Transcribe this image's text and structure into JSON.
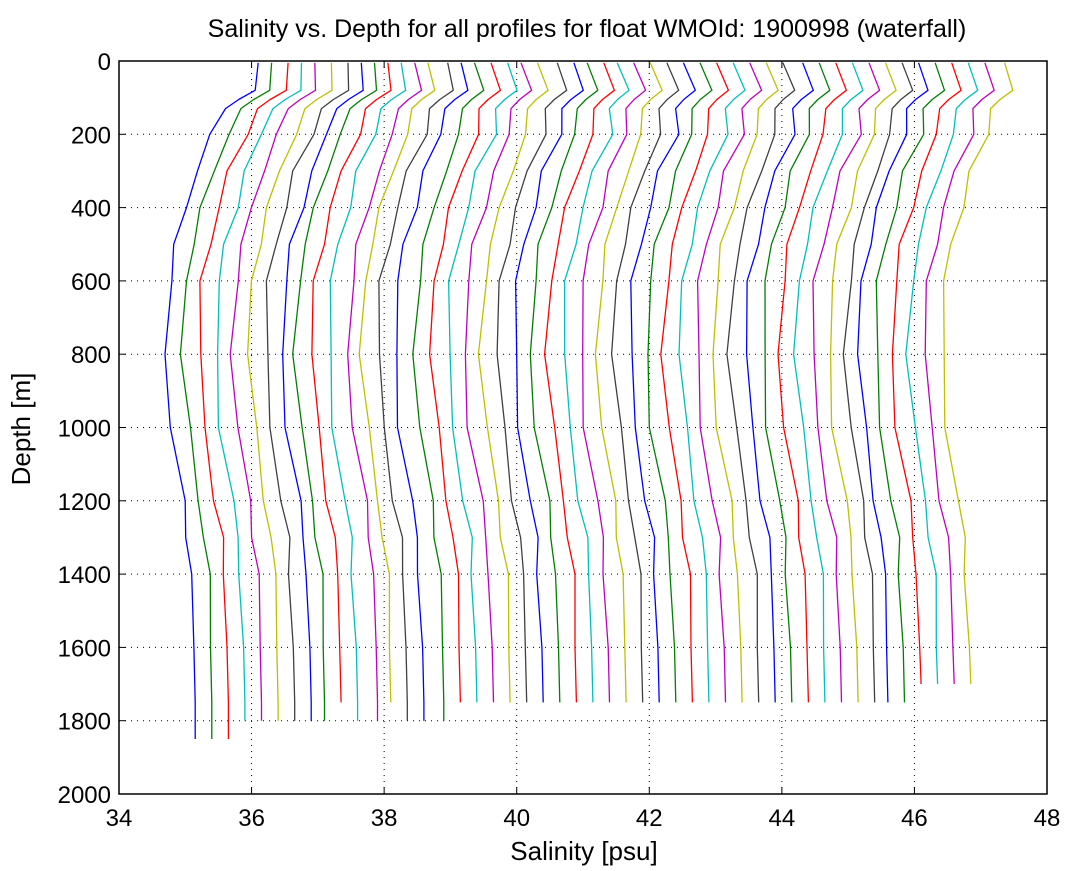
{
  "chart_data": {
    "type": "line",
    "title": "Salinity vs. Depth for all profiles for float WMOId: 1900998 (waterfall)",
    "xlabel": "Salinity [psu]",
    "ylabel": "Depth [m]",
    "xlim": [
      34,
      48
    ],
    "ylim": [
      0,
      2000
    ],
    "y_reversed": true,
    "grid": true,
    "legend": "none",
    "xticks": [
      "34",
      "36",
      "38",
      "40",
      "42",
      "44",
      "46",
      "48"
    ],
    "yticks": [
      "0",
      "200",
      "400",
      "600",
      "800",
      "1000",
      "1200",
      "1400",
      "1600",
      "1800",
      "2000"
    ],
    "depth_levels": [
      5,
      80,
      105,
      130,
      200,
      300,
      400,
      500,
      600,
      800,
      1000,
      1200,
      1300,
      1400,
      1600,
      1750
    ],
    "profile_shape_offsets_psu": [
      1.4,
      1.35,
      1.1,
      0.9,
      0.7,
      0.45,
      0.3,
      0.15,
      0.05,
      0.0,
      0.08,
      0.25,
      0.33,
      0.38,
      0.42,
      0.44
    ],
    "series": [
      {
        "color": "#0000ff",
        "surface_salinity": 36.1,
        "deep_salinity": 35.15,
        "max_depth": 1850
      },
      {
        "color": "#008000",
        "surface_salinity": 36.3,
        "deep_salinity": 35.4,
        "max_depth": 1850
      },
      {
        "color": "#ff0000",
        "surface_salinity": 36.55,
        "deep_salinity": 35.65,
        "max_depth": 1850
      },
      {
        "color": "#00bfbf",
        "surface_salinity": 36.75,
        "deep_salinity": 35.9,
        "max_depth": 1800
      },
      {
        "color": "#bf00bf",
        "surface_salinity": 36.95,
        "deep_salinity": 36.15,
        "max_depth": 1800
      },
      {
        "color": "#bfbf00",
        "surface_salinity": 37.2,
        "deep_salinity": 36.4,
        "max_depth": 1800
      },
      {
        "color": "#404040",
        "surface_salinity": 37.45,
        "deep_salinity": 36.65,
        "max_depth": 1800
      },
      {
        "color": "#0000ff",
        "surface_salinity": 37.65,
        "deep_salinity": 36.9,
        "max_depth": 1800
      },
      {
        "color": "#008000",
        "surface_salinity": 37.85,
        "deep_salinity": 37.1,
        "max_depth": 1800
      },
      {
        "color": "#ff0000",
        "surface_salinity": 38.05,
        "deep_salinity": 37.35,
        "max_depth": 1750
      },
      {
        "color": "#00bfbf",
        "surface_salinity": 38.25,
        "deep_salinity": 37.6,
        "max_depth": 1800
      },
      {
        "color": "#bf00bf",
        "surface_salinity": 38.45,
        "deep_salinity": 37.9,
        "max_depth": 1800
      },
      {
        "color": "#bfbf00",
        "surface_salinity": 38.65,
        "deep_salinity": 38.1,
        "max_depth": 1750
      },
      {
        "color": "#404040",
        "surface_salinity": 38.95,
        "deep_salinity": 38.35,
        "max_depth": 1800
      },
      {
        "color": "#0000ff",
        "surface_salinity": 39.15,
        "deep_salinity": 38.6,
        "max_depth": 1800
      },
      {
        "color": "#008000",
        "surface_salinity": 39.35,
        "deep_salinity": 38.9,
        "max_depth": 1800
      },
      {
        "color": "#ff0000",
        "surface_salinity": 39.6,
        "deep_salinity": 39.15,
        "max_depth": 1750
      },
      {
        "color": "#00bfbf",
        "surface_salinity": 39.85,
        "deep_salinity": 39.4,
        "max_depth": 1750
      },
      {
        "color": "#bf00bf",
        "surface_salinity": 40.05,
        "deep_salinity": 39.65,
        "max_depth": 1750
      },
      {
        "color": "#bfbf00",
        "surface_salinity": 40.3,
        "deep_salinity": 39.9,
        "max_depth": 1750
      },
      {
        "color": "#404040",
        "surface_salinity": 40.6,
        "deep_salinity": 40.15,
        "max_depth": 1750
      },
      {
        "color": "#0000ff",
        "surface_salinity": 40.85,
        "deep_salinity": 40.4,
        "max_depth": 1750
      },
      {
        "color": "#008000",
        "surface_salinity": 41.05,
        "deep_salinity": 40.65,
        "max_depth": 1750
      },
      {
        "color": "#ff0000",
        "surface_salinity": 41.3,
        "deep_salinity": 40.9,
        "max_depth": 1750
      },
      {
        "color": "#00bfbf",
        "surface_salinity": 41.5,
        "deep_salinity": 41.15,
        "max_depth": 1750
      },
      {
        "color": "#bf00bf",
        "surface_salinity": 41.75,
        "deep_salinity": 41.4,
        "max_depth": 1750
      },
      {
        "color": "#bfbf00",
        "surface_salinity": 42.0,
        "deep_salinity": 41.65,
        "max_depth": 1750
      },
      {
        "color": "#404040",
        "surface_salinity": 42.25,
        "deep_salinity": 41.9,
        "max_depth": 1750
      },
      {
        "color": "#0000ff",
        "surface_salinity": 42.5,
        "deep_salinity": 42.15,
        "max_depth": 1750
      },
      {
        "color": "#008000",
        "surface_salinity": 42.75,
        "deep_salinity": 42.4,
        "max_depth": 1750
      },
      {
        "color": "#ff0000",
        "surface_salinity": 43.0,
        "deep_salinity": 42.65,
        "max_depth": 1750
      },
      {
        "color": "#00bfbf",
        "surface_salinity": 43.25,
        "deep_salinity": 42.9,
        "max_depth": 1750
      },
      {
        "color": "#bf00bf",
        "surface_salinity": 43.5,
        "deep_salinity": 43.15,
        "max_depth": 1750
      },
      {
        "color": "#bfbf00",
        "surface_salinity": 43.75,
        "deep_salinity": 43.4,
        "max_depth": 1750
      },
      {
        "color": "#404040",
        "surface_salinity": 44.0,
        "deep_salinity": 43.65,
        "max_depth": 1750
      },
      {
        "color": "#0000ff",
        "surface_salinity": 44.3,
        "deep_salinity": 43.9,
        "max_depth": 1750
      },
      {
        "color": "#008000",
        "surface_salinity": 44.55,
        "deep_salinity": 44.15,
        "max_depth": 1750
      },
      {
        "color": "#ff0000",
        "surface_salinity": 44.8,
        "deep_salinity": 44.4,
        "max_depth": 1750
      },
      {
        "color": "#00bfbf",
        "surface_salinity": 45.05,
        "deep_salinity": 44.65,
        "max_depth": 1750
      },
      {
        "color": "#bf00bf",
        "surface_salinity": 45.3,
        "deep_salinity": 44.9,
        "max_depth": 1750
      },
      {
        "color": "#bfbf00",
        "surface_salinity": 45.55,
        "deep_salinity": 45.15,
        "max_depth": 1750
      },
      {
        "color": "#404040",
        "surface_salinity": 45.8,
        "deep_salinity": 45.4,
        "max_depth": 1750
      },
      {
        "color": "#0000ff",
        "surface_salinity": 46.05,
        "deep_salinity": 45.6,
        "max_depth": 1750
      },
      {
        "color": "#008000",
        "surface_salinity": 46.3,
        "deep_salinity": 45.85,
        "max_depth": 1750
      },
      {
        "color": "#ff0000",
        "surface_salinity": 46.55,
        "deep_salinity": 46.1,
        "max_depth": 1700
      },
      {
        "color": "#00bfbf",
        "surface_salinity": 46.8,
        "deep_salinity": 46.35,
        "max_depth": 1700
      },
      {
        "color": "#bf00bf",
        "surface_salinity": 47.05,
        "deep_salinity": 46.6,
        "max_depth": 1700
      },
      {
        "color": "#bfbf00",
        "surface_salinity": 47.35,
        "deep_salinity": 46.85,
        "max_depth": 1700
      }
    ]
  }
}
